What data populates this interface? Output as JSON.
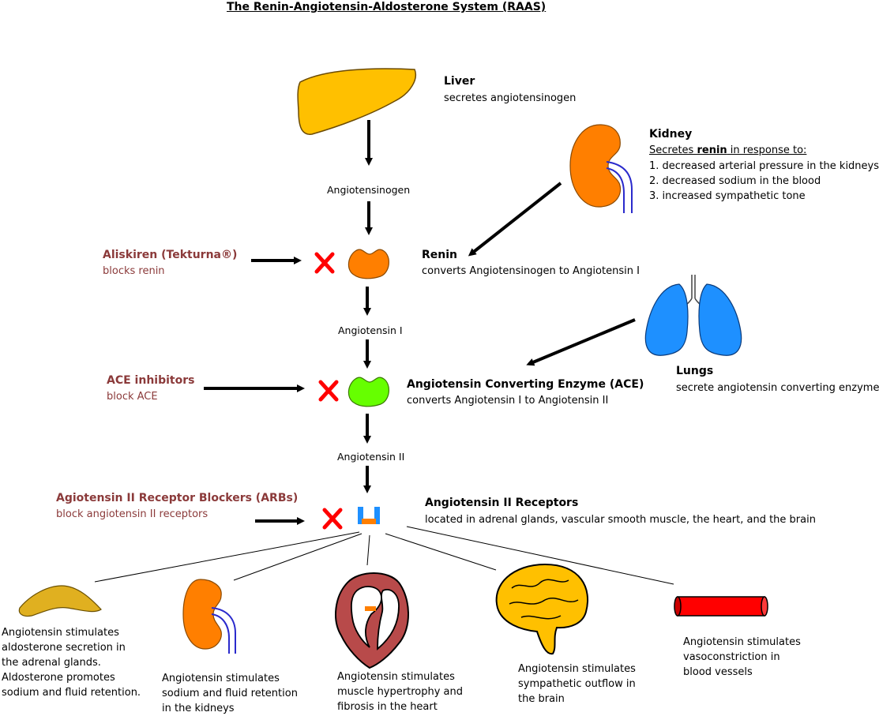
{
  "title": "The  Renin-Angiotensin-Aldosterone System (RAAS)",
  "liver": {
    "name": "Liver",
    "desc": "secretes angiotensinogen"
  },
  "kidney": {
    "name": "Kidney",
    "secretes_pre": "Secretes ",
    "secretes_bold": "renin",
    "secretes_post": " in response to:",
    "reasons": [
      "1. decreased arterial pressure in the kidneys",
      "2. decreased sodium in the blood",
      "3. increased sympathetic tone"
    ]
  },
  "lungs": {
    "name": "Lungs",
    "desc": "secrete angiotensin converting enzyme"
  },
  "cascade": {
    "angiotensinogen": "Angiotensinogen",
    "angiotensin1": "Angiotensin I",
    "angiotensin2": "Angiotensin II"
  },
  "renin": {
    "name": "Renin",
    "desc": "converts Angiotensinogen to Angiotensin I"
  },
  "ace": {
    "name": "Angiotensin Converting Enzyme (ACE)",
    "desc": "converts Angiotensin I to Angiotensin II"
  },
  "receptors": {
    "name": "Angiotensin II Receptors",
    "desc": "located in adrenal glands, vascular smooth muscle, the heart, and the brain"
  },
  "drugs": {
    "aliskiren": {
      "name": "Aliskiren (Tekturna®)",
      "desc": "blocks renin"
    },
    "ace_inhibitors": {
      "name": "ACE inhibitors",
      "desc": "block ACE"
    },
    "arbs": {
      "name": "Agiotensin II Receptor Blockers (ARBs)",
      "desc": "block angiotensin II receptors"
    }
  },
  "effects": {
    "adrenal": "Angiotensin stimulates aldosterone secretion in the adrenal glands. Aldosterone promotes sodium and fluid retention.",
    "kidney": "Angiotensin stimulates sodium and fluid retention in the kidneys",
    "heart": "Angiotensin stimulates muscle hypertrophy and fibrosis in the heart",
    "brain": "Angiotensin stimulates sympathetic outflow in the brain",
    "vessels": "Angiotensin stimulates vasoconstriction in blood vessels"
  },
  "colors": {
    "drug_text": "#8b3a3a",
    "liver": "#ffc000",
    "kidney": "#ff7f00",
    "renin_enzyme": "#ff7f00",
    "ace_enzyme": "#66ff00",
    "lungs": "#1e90ff",
    "block_x": "#ff0000",
    "adrenal": "#e0b020",
    "brain": "#ffc000",
    "heart": "#b84a4a",
    "vessel": "#ff0000"
  }
}
